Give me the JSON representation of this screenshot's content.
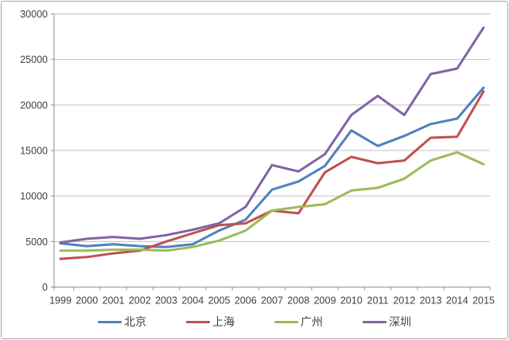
{
  "chart_data": {
    "type": "line",
    "title": "",
    "xlabel": "",
    "ylabel": "",
    "x": [
      "1999",
      "2000",
      "2001",
      "2002",
      "2003",
      "2004",
      "2005",
      "2006",
      "2007",
      "2008",
      "2009",
      "2010",
      "2011",
      "2012",
      "2013",
      "2014",
      "2015"
    ],
    "y_axis": {
      "min": 0,
      "max": 30000,
      "step": 5000,
      "tick_labels": [
        "0",
        "5000",
        "10000",
        "15000",
        "20000",
        "25000",
        "30000"
      ]
    },
    "grid": true,
    "legend_position": "bottom",
    "series": [
      {
        "name": "北京",
        "color": "#4F81BD",
        "values": [
          4800,
          4500,
          4700,
          4500,
          4400,
          4700,
          6200,
          7400,
          10700,
          11600,
          13300,
          17200,
          15500,
          16600,
          17900,
          18500,
          21900
        ]
      },
      {
        "name": "上海",
        "color": "#C0504D",
        "values": [
          3100,
          3300,
          3700,
          4000,
          5000,
          5900,
          6800,
          7000,
          8400,
          8100,
          12600,
          14300,
          13600,
          13900,
          16400,
          16500,
          21500
        ]
      },
      {
        "name": "广州",
        "color": "#9BBB59",
        "values": [
          4000,
          4000,
          4100,
          4100,
          4000,
          4400,
          5100,
          6200,
          8400,
          8800,
          9100,
          10600,
          10900,
          11900,
          13900,
          14800,
          13500
        ]
      },
      {
        "name": "深圳",
        "color": "#8064A2",
        "values": [
          4900,
          5300,
          5500,
          5300,
          5700,
          6300,
          7000,
          8800,
          13400,
          12700,
          14600,
          18900,
          21000,
          18900,
          23400,
          24000,
          28500
        ]
      }
    ]
  },
  "appearance": {
    "gridline_color": "#C0C0C0",
    "axis_color": "#8E8E8E",
    "tick_label_color": "#3F3F3F",
    "frame_border_color": "#A6A6A6",
    "background_color": "#FFFFFF"
  }
}
